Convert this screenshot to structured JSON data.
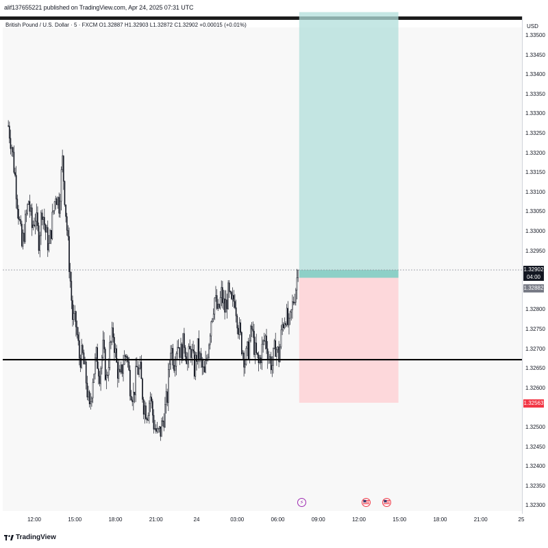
{
  "header": {
    "published": "alif137655221 published on TradingView.com, Apr 24, 2025 07:31 UTC",
    "legend": "British Pound / U.S. Dollar · 5 · FXCM  O1.32887  H1.32903  L1.32872  C1.32902  +0.00015 (+0.01%)"
  },
  "axis": {
    "currency": "USD",
    "price_ticks": [
      "1.33500",
      "1.33450",
      "1.33400",
      "1.33350",
      "1.33300",
      "1.33250",
      "1.33200",
      "1.33150",
      "1.33100",
      "1.33050",
      "1.33000",
      "1.32950",
      "1.32800",
      "1.32750",
      "1.32700",
      "1.32650",
      "1.32600",
      "1.32500",
      "1.32450",
      "1.32400",
      "1.32350",
      "1.32300"
    ],
    "time_ticks": [
      "12:00",
      "15:00",
      "18:00",
      "21:00",
      "24",
      "03:00",
      "06:00",
      "09:00",
      "12:00",
      "15:00",
      "18:00",
      "21:00",
      "25"
    ]
  },
  "badges": {
    "last_price": "1.32902",
    "countdown": "04:00",
    "entry_price": "1.32882",
    "stop_price": "1.32563",
    "last_color": "#131722",
    "entry_color": "#787b86",
    "stop_color": "#f23645"
  },
  "footer": {
    "brand": "TradingView"
  },
  "events": [
    {
      "icon": "lightning-icon",
      "time": "07:45"
    },
    {
      "icon": "us-flag-icon",
      "time": "12:30"
    },
    {
      "icon": "us-flag-icon",
      "time": "14:00"
    }
  ],
  "chart_data": {
    "type": "candlestick",
    "symbol": "GBPUSD",
    "timeframe": "5",
    "y_axis_range": [
      1.3225,
      1.3355
    ],
    "horizontal_level": 1.32673,
    "long_position": {
      "entry": 1.32882,
      "target": 1.3356,
      "stop": 1.32563,
      "profit_color": "#b2dfdb",
      "loss_color": "#ffcdd2"
    },
    "close_path": [
      [
        "10:05",
        1.3327
      ],
      [
        "10:20",
        1.3322
      ],
      [
        "10:35",
        1.3314
      ],
      [
        "10:50",
        1.3305
      ],
      [
        "11:05",
        1.3296
      ],
      [
        "11:20",
        1.3302
      ],
      [
        "11:35",
        1.3308
      ],
      [
        "11:50",
        1.3301
      ],
      [
        "12:05",
        1.3304
      ],
      [
        "12:20",
        1.3298
      ],
      [
        "12:35",
        1.3306
      ],
      [
        "12:50",
        1.33
      ],
      [
        "13:05",
        1.3296
      ],
      [
        "13:20",
        1.3303
      ],
      [
        "13:35",
        1.331
      ],
      [
        "13:50",
        1.3307
      ],
      [
        "14:05",
        1.3318
      ],
      [
        "14:20",
        1.3305
      ],
      [
        "14:35",
        1.3292
      ],
      [
        "14:50",
        1.3278
      ],
      [
        "15:05",
        1.3276
      ],
      [
        "15:20",
        1.3268
      ],
      [
        "15:35",
        1.3268
      ],
      [
        "15:50",
        1.3262
      ],
      [
        "16:05",
        1.3254
      ],
      [
        "16:20",
        1.3263
      ],
      [
        "16:35",
        1.3268
      ],
      [
        "16:50",
        1.3264
      ],
      [
        "17:05",
        1.327
      ],
      [
        "17:20",
        1.3262
      ],
      [
        "17:35",
        1.327
      ],
      [
        "17:50",
        1.3274
      ],
      [
        "18:05",
        1.3266
      ],
      [
        "18:20",
        1.3262
      ],
      [
        "18:35",
        1.3267
      ],
      [
        "18:50",
        1.3269
      ],
      [
        "19:05",
        1.3261
      ],
      [
        "19:20",
        1.3258
      ],
      [
        "19:35",
        1.3265
      ],
      [
        "19:50",
        1.3264
      ],
      [
        "20:05",
        1.3256
      ],
      [
        "20:20",
        1.3254
      ],
      [
        "20:35",
        1.3258
      ],
      [
        "20:50",
        1.3251
      ],
      [
        "21:05",
        1.3248
      ],
      [
        "21:20",
        1.3249
      ],
      [
        "21:35",
        1.3253
      ],
      [
        "21:50",
        1.3258
      ],
      [
        "22:05",
        1.3271
      ],
      [
        "22:20",
        1.3267
      ],
      [
        "22:35",
        1.3272
      ],
      [
        "22:50",
        1.3269
      ],
      [
        "23:05",
        1.3272
      ],
      [
        "23:20",
        1.3267
      ],
      [
        "23:35",
        1.327
      ],
      [
        "23:50",
        1.3265
      ],
      [
        "00:05",
        1.327
      ],
      [
        "00:20",
        1.3266
      ],
      [
        "00:35",
        1.3263
      ],
      [
        "00:50",
        1.327
      ],
      [
        "01:05",
        1.3278
      ],
      [
        "01:20",
        1.3283
      ],
      [
        "01:35",
        1.3279
      ],
      [
        "01:50",
        1.3284
      ],
      [
        "02:05",
        1.328
      ],
      [
        "02:20",
        1.3284
      ],
      [
        "02:35",
        1.3281
      ],
      [
        "02:50",
        1.3283
      ],
      [
        "03:05",
        1.3276
      ],
      [
        "03:20",
        1.3271
      ],
      [
        "03:35",
        1.3267
      ],
      [
        "03:50",
        1.327
      ],
      [
        "04:05",
        1.3275
      ],
      [
        "04:20",
        1.3269
      ],
      [
        "04:35",
        1.3266
      ],
      [
        "04:50",
        1.327
      ],
      [
        "05:05",
        1.3273
      ],
      [
        "05:20",
        1.3268
      ],
      [
        "05:35",
        1.3266
      ],
      [
        "05:50",
        1.3271
      ],
      [
        "06:05",
        1.3268
      ],
      [
        "06:20",
        1.3276
      ],
      [
        "06:35",
        1.3279
      ],
      [
        "06:50",
        1.3275
      ],
      [
        "07:05",
        1.3281
      ],
      [
        "07:20",
        1.3286
      ],
      [
        "07:30",
        1.32902
      ]
    ]
  }
}
